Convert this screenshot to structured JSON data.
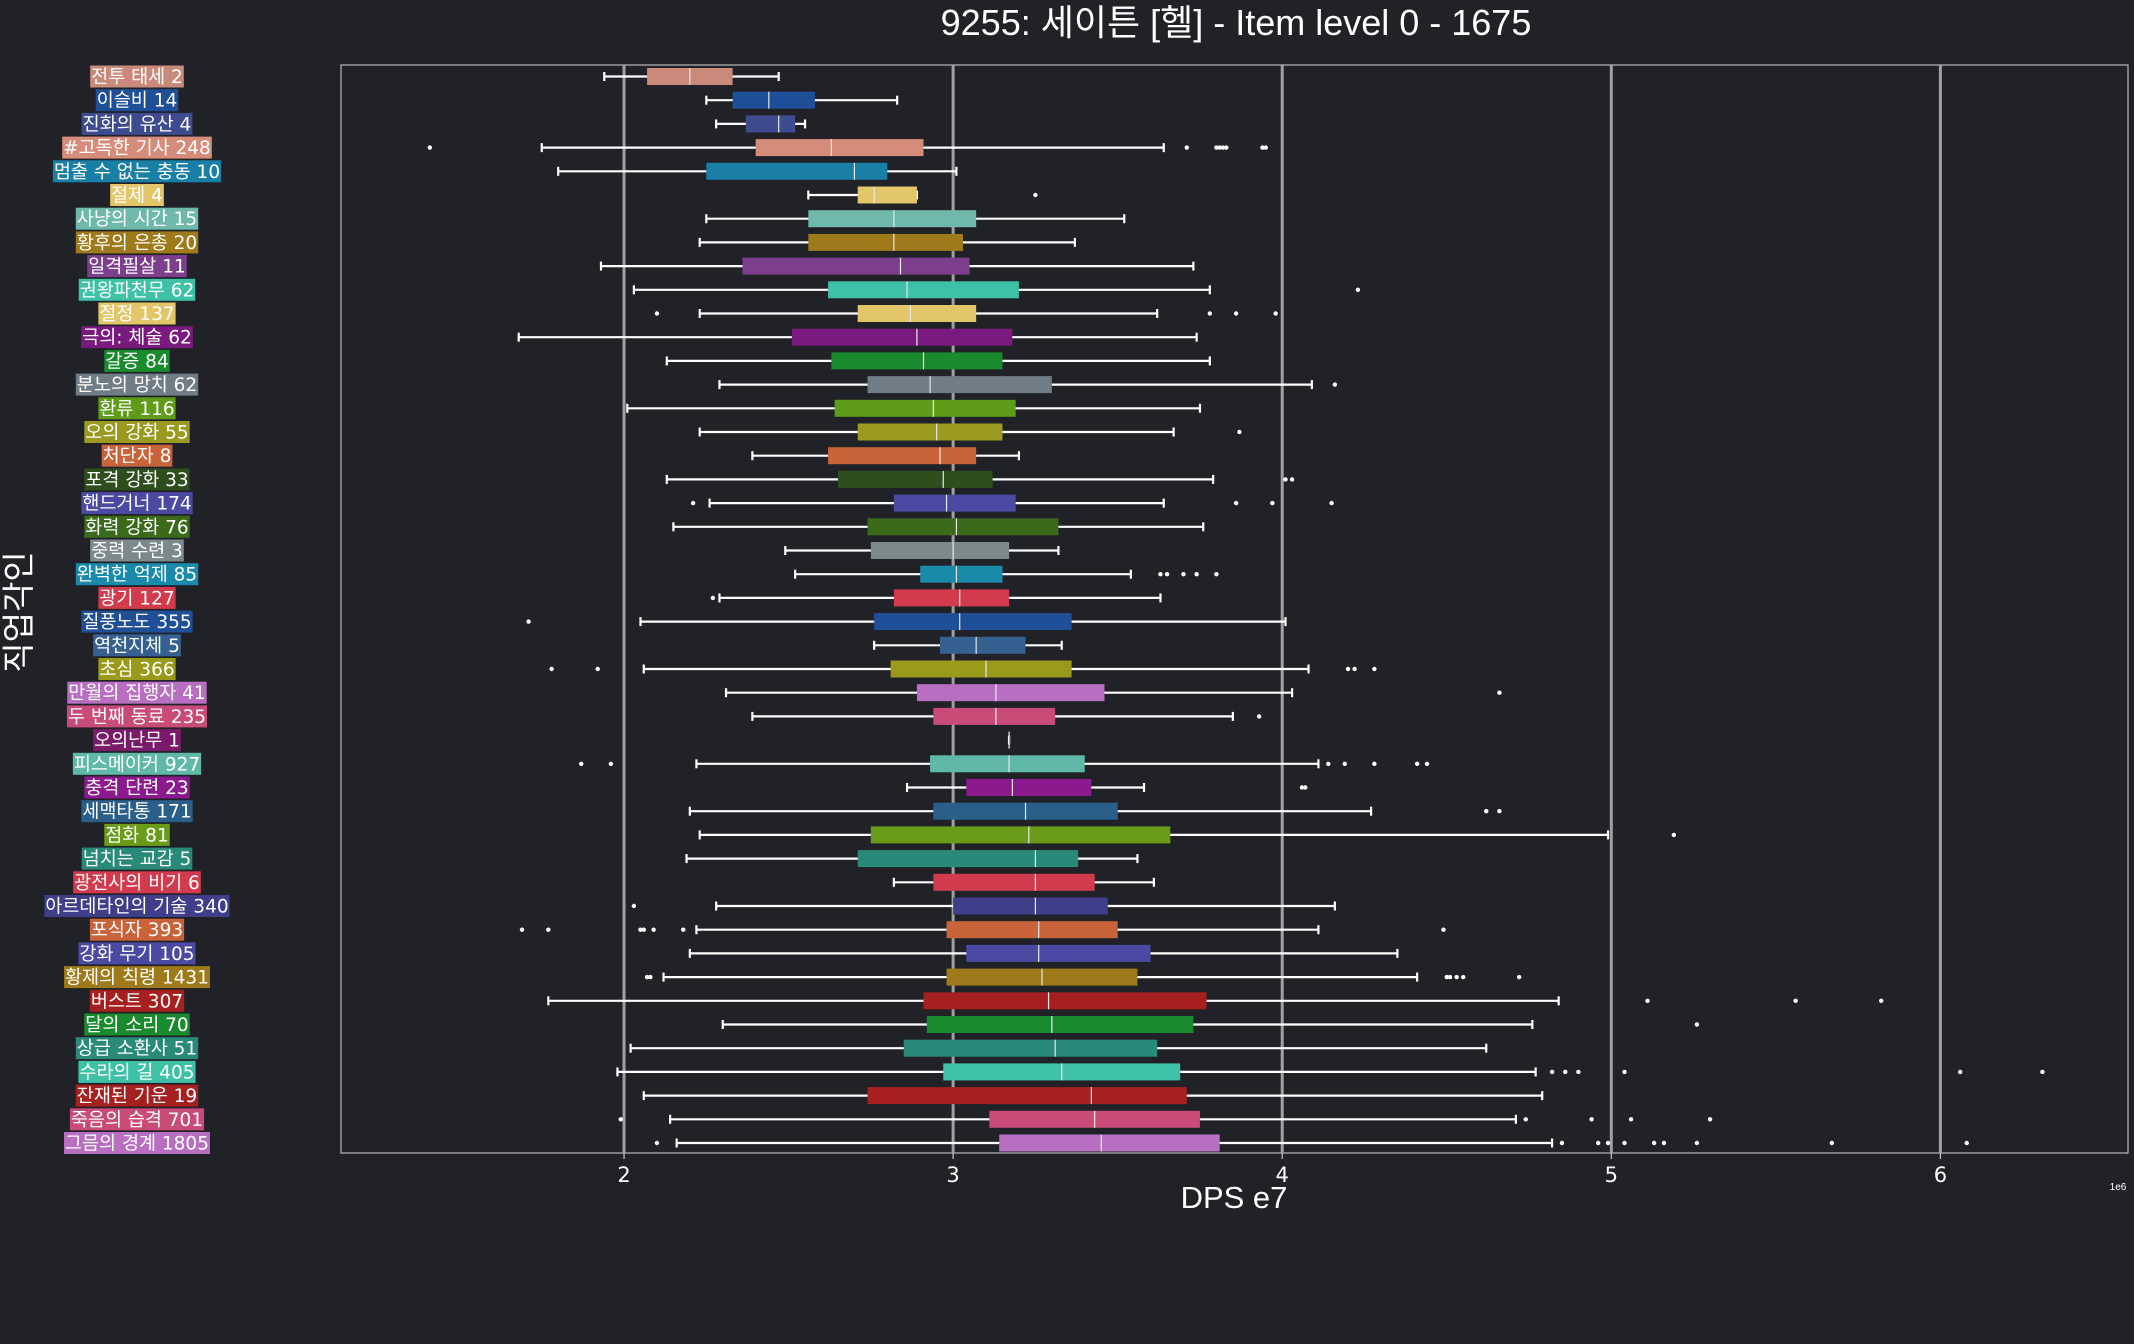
{
  "chart_data": {
    "type": "box",
    "title": "9255: 세이튼 [헬] - Item level 0 - 1675",
    "xlabel": "DPS e7",
    "ylabel": "직업각인",
    "x_unit": "1e6",
    "xlim": [
      1.14,
      6.57
    ],
    "xticks": [
      2,
      3,
      4,
      5,
      6
    ],
    "grid": "vertical",
    "orientation": "horizontal",
    "categories": [
      {
        "label": "전투 태세 2",
        "color": "#c98a7c",
        "wl": 1.94,
        "q1": 2.07,
        "med": 2.2,
        "q3": 2.33,
        "wh": 2.47,
        "outliers": []
      },
      {
        "label": "이슬비 14",
        "color": "#1f4f96",
        "wl": 2.25,
        "q1": 2.33,
        "med": 2.44,
        "q3": 2.58,
        "wh": 2.83,
        "outliers": []
      },
      {
        "label": "진화의 유산 4",
        "color": "#3e4b8f",
        "wl": 2.28,
        "q1": 2.37,
        "med": 2.47,
        "q3": 2.52,
        "wh": 2.55,
        "outliers": []
      },
      {
        "label": "#고독한 기사 248",
        "color": "#d68c7a",
        "wl": 1.75,
        "q1": 2.4,
        "med": 2.63,
        "q3": 2.91,
        "wh": 3.64,
        "outliers": [
          1.41,
          3.71,
          3.8,
          3.81,
          3.82,
          3.83,
          3.94,
          3.95
        ]
      },
      {
        "label": "멈출 수 없는 충동 10",
        "color": "#1a7fa6",
        "wl": 1.8,
        "q1": 2.25,
        "med": 2.7,
        "q3": 2.8,
        "wh": 3.01,
        "outliers": []
      },
      {
        "label": "절제 4",
        "color": "#e3c56a",
        "wl": 2.56,
        "q1": 2.71,
        "med": 2.76,
        "q3": 2.89,
        "wh": 2.89,
        "outliers": [
          3.25
        ]
      },
      {
        "label": "사냥의 시간 15",
        "color": "#6fb9ac",
        "wl": 2.25,
        "q1": 2.56,
        "med": 2.82,
        "q3": 3.07,
        "wh": 3.52,
        "outliers": []
      },
      {
        "label": "황후의 은총 20",
        "color": "#9e7a1a",
        "wl": 2.23,
        "q1": 2.56,
        "med": 2.82,
        "q3": 3.03,
        "wh": 3.37,
        "outliers": []
      },
      {
        "label": "일격필살 11",
        "color": "#7d3f8c",
        "wl": 1.93,
        "q1": 2.36,
        "med": 2.84,
        "q3": 3.05,
        "wh": 3.73,
        "outliers": []
      },
      {
        "label": "권왕파천무 62",
        "color": "#3fc1a8",
        "wl": 2.03,
        "q1": 2.62,
        "med": 2.86,
        "q3": 3.2,
        "wh": 3.78,
        "outliers": [
          4.23
        ]
      },
      {
        "label": "절정 137",
        "color": "#e3c56a",
        "wl": 2.23,
        "q1": 2.71,
        "med": 2.87,
        "q3": 3.07,
        "wh": 3.62,
        "outliers": [
          2.1,
          3.78,
          3.86,
          3.98
        ]
      },
      {
        "label": "극의: 체술 62",
        "color": "#7a1a7e",
        "wl": 1.68,
        "q1": 2.51,
        "med": 2.89,
        "q3": 3.18,
        "wh": 3.74,
        "outliers": []
      },
      {
        "label": "갈증 84",
        "color": "#1a8a2e",
        "wl": 2.13,
        "q1": 2.63,
        "med": 2.91,
        "q3": 3.15,
        "wh": 3.78,
        "outliers": []
      },
      {
        "label": "분노의 망치 62",
        "color": "#707d87",
        "wl": 2.29,
        "q1": 2.74,
        "med": 2.93,
        "q3": 3.3,
        "wh": 4.09,
        "outliers": [
          4.16
        ]
      },
      {
        "label": "환류 116",
        "color": "#5f9c1a",
        "wl": 2.01,
        "q1": 2.64,
        "med": 2.94,
        "q3": 3.19,
        "wh": 3.75,
        "outliers": []
      },
      {
        "label": "오의 강화 55",
        "color": "#9a9a20",
        "wl": 2.23,
        "q1": 2.71,
        "med": 2.95,
        "q3": 3.15,
        "wh": 3.67,
        "outliers": [
          3.87
        ]
      },
      {
        "label": "처단자 8",
        "color": "#c9633a",
        "wl": 2.39,
        "q1": 2.62,
        "med": 2.96,
        "q3": 3.07,
        "wh": 3.2,
        "outliers": []
      },
      {
        "label": "포격 강화 33",
        "color": "#2e4e1e",
        "wl": 2.13,
        "q1": 2.65,
        "med": 2.97,
        "q3": 3.12,
        "wh": 3.79,
        "outliers": [
          4.01,
          4.03
        ]
      },
      {
        "label": "핸드거너 174",
        "color": "#4a4aa3",
        "wl": 2.26,
        "q1": 2.82,
        "med": 2.98,
        "q3": 3.19,
        "wh": 3.64,
        "outliers": [
          2.21,
          3.86,
          3.97,
          4.15
        ]
      },
      {
        "label": "화력 강화 76",
        "color": "#3a6a1a",
        "wl": 2.15,
        "q1": 2.74,
        "med": 3.01,
        "q3": 3.32,
        "wh": 3.76,
        "outliers": []
      },
      {
        "label": "중력 수련 3",
        "color": "#7d8a8c",
        "wl": 2.49,
        "q1": 2.75,
        "med": 3.0,
        "q3": 3.17,
        "wh": 3.32,
        "outliers": []
      },
      {
        "label": "완벽한 억제 85",
        "color": "#1a8aaa",
        "wl": 2.52,
        "q1": 2.9,
        "med": 3.01,
        "q3": 3.15,
        "wh": 3.54,
        "outliers": [
          3.63,
          3.65,
          3.7,
          3.74,
          3.8
        ]
      },
      {
        "label": "광기 127",
        "color": "#d23a4e",
        "wl": 2.29,
        "q1": 2.82,
        "med": 3.02,
        "q3": 3.17,
        "wh": 3.63,
        "outliers": [
          2.27
        ]
      },
      {
        "label": "질풍노도 355",
        "color": "#1f4f96",
        "wl": 2.05,
        "q1": 2.76,
        "med": 3.02,
        "q3": 3.36,
        "wh": 4.01,
        "outliers": [
          1.71
        ]
      },
      {
        "label": "역천지체 5",
        "color": "#35608f",
        "wl": 2.76,
        "q1": 2.96,
        "med": 3.07,
        "q3": 3.22,
        "wh": 3.33,
        "outliers": []
      },
      {
        "label": "초심 366",
        "color": "#9a9a1a",
        "wl": 2.06,
        "q1": 2.81,
        "med": 3.1,
        "q3": 3.36,
        "wh": 4.08,
        "outliers": [
          1.78,
          1.92,
          4.2,
          4.22,
          4.28
        ]
      },
      {
        "label": "만월의 집행자 41",
        "color": "#b86ec1",
        "wl": 2.31,
        "q1": 2.89,
        "med": 3.13,
        "q3": 3.46,
        "wh": 4.03,
        "outliers": [
          4.66
        ]
      },
      {
        "label": "두 번째 동료 235",
        "color": "#c94b78",
        "wl": 2.39,
        "q1": 2.94,
        "med": 3.13,
        "q3": 3.31,
        "wh": 3.85,
        "outliers": [
          3.93
        ]
      },
      {
        "label": "오의난무 1",
        "color": "#7a1a6a",
        "wl": 3.17,
        "q1": 3.17,
        "med": 3.17,
        "q3": 3.17,
        "wh": 3.17,
        "outliers": []
      },
      {
        "label": "피스메이커 927",
        "color": "#5fb8a8",
        "wl": 2.22,
        "q1": 2.93,
        "med": 3.17,
        "q3": 3.4,
        "wh": 4.11,
        "outliers": [
          1.87,
          1.96,
          4.14,
          4.19,
          4.28,
          4.41,
          4.44
        ]
      },
      {
        "label": "충격 단련 23",
        "color": "#8a1a8e",
        "wl": 2.86,
        "q1": 3.04,
        "med": 3.18,
        "q3": 3.42,
        "wh": 3.58,
        "outliers": [
          4.06,
          4.07
        ]
      },
      {
        "label": "세맥타통 171",
        "color": "#2a5f8a",
        "wl": 2.2,
        "q1": 2.94,
        "med": 3.22,
        "q3": 3.5,
        "wh": 4.27,
        "outliers": [
          4.62,
          4.66
        ]
      },
      {
        "label": "점화 81",
        "color": "#6a9c1a",
        "wl": 2.23,
        "q1": 2.75,
        "med": 3.23,
        "q3": 3.66,
        "wh": 4.99,
        "outliers": [
          5.19
        ]
      },
      {
        "label": "넘치는 교감 5",
        "color": "#2a8a7a",
        "wl": 2.19,
        "q1": 2.71,
        "med": 3.25,
        "q3": 3.38,
        "wh": 3.56,
        "outliers": []
      },
      {
        "label": "광전사의 비기 6",
        "color": "#d23a4e",
        "wl": 2.82,
        "q1": 2.94,
        "med": 3.25,
        "q3": 3.43,
        "wh": 3.61,
        "outliers": []
      },
      {
        "label": "아르데타인의 기술 340",
        "color": "#3e3e8a",
        "wl": 2.28,
        "q1": 3.0,
        "med": 3.25,
        "q3": 3.47,
        "wh": 4.16,
        "outliers": [
          2.03
        ]
      },
      {
        "label": "포식자 393",
        "color": "#c9633a",
        "wl": 2.22,
        "q1": 2.98,
        "med": 3.26,
        "q3": 3.5,
        "wh": 4.11,
        "outliers": [
          1.69,
          1.77,
          2.05,
          2.06,
          2.09,
          2.18,
          4.49
        ]
      },
      {
        "label": "강화 무기 105",
        "color": "#4a4aa3",
        "wl": 2.2,
        "q1": 3.04,
        "med": 3.26,
        "q3": 3.6,
        "wh": 4.35,
        "outliers": []
      },
      {
        "label": "황제의 칙령 1431",
        "color": "#9e7a1a",
        "wl": 2.12,
        "q1": 2.98,
        "med": 3.27,
        "q3": 3.56,
        "wh": 4.41,
        "outliers": [
          2.07,
          2.08,
          4.5,
          4.51,
          4.53,
          4.55,
          4.72
        ]
      },
      {
        "label": "버스트 307",
        "color": "#a62020",
        "wl": 1.77,
        "q1": 2.91,
        "med": 3.29,
        "q3": 3.77,
        "wh": 4.84,
        "outliers": [
          5.11,
          5.56,
          5.82
        ]
      },
      {
        "label": "달의 소리 70",
        "color": "#1a8a2e",
        "wl": 2.3,
        "q1": 2.92,
        "med": 3.3,
        "q3": 3.73,
        "wh": 4.76,
        "outliers": [
          5.26
        ]
      },
      {
        "label": "상급 소환사 51",
        "color": "#2a8a7a",
        "wl": 2.02,
        "q1": 2.85,
        "med": 3.31,
        "q3": 3.62,
        "wh": 4.62,
        "outliers": []
      },
      {
        "label": "수라의 길 405",
        "color": "#3fc1a8",
        "wl": 1.98,
        "q1": 2.97,
        "med": 3.33,
        "q3": 3.69,
        "wh": 4.77,
        "outliers": [
          4.82,
          4.86,
          4.9,
          5.04,
          6.06,
          6.31
        ]
      },
      {
        "label": "잔재된 기운 19",
        "color": "#a62020",
        "wl": 2.06,
        "q1": 2.74,
        "med": 3.42,
        "q3": 3.71,
        "wh": 4.79,
        "outliers": []
      },
      {
        "label": "죽음의 습격 701",
        "color": "#c94b78",
        "wl": 2.14,
        "q1": 3.11,
        "med": 3.43,
        "q3": 3.75,
        "wh": 4.71,
        "outliers": [
          1.99,
          4.74,
          4.94,
          5.06,
          5.3
        ]
      },
      {
        "label": "그믐의 경계 1805",
        "color": "#b86ec1",
        "wl": 2.16,
        "q1": 3.14,
        "med": 3.45,
        "q3": 3.81,
        "wh": 4.82,
        "outliers": [
          2.1,
          4.85,
          4.96,
          4.99,
          5.04,
          5.13,
          5.16,
          5.26,
          5.67,
          6.08
        ]
      }
    ]
  }
}
